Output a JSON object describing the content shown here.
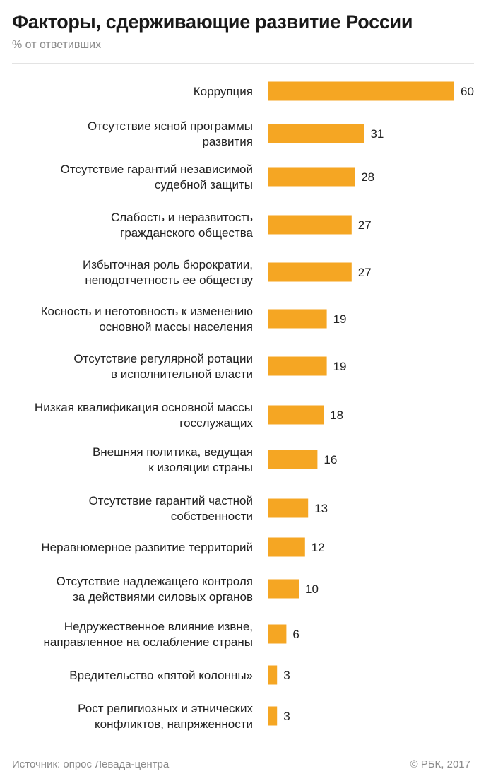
{
  "header": {
    "title": "Факторы, сдерживающие развитие России",
    "subtitle": "% от ответивших"
  },
  "footer": {
    "source": "Источник: опрос Левада-центра",
    "copyright": "© РБК, 2017"
  },
  "colors": {
    "bar": "#f5a623",
    "label": "#222222",
    "muted": "#8a8a8a"
  },
  "chart_data": {
    "type": "bar",
    "orientation": "horizontal",
    "categories": [
      [
        "Коррупция"
      ],
      [
        "Отсутствие ясной программы",
        "развития"
      ],
      [
        "Отсутствие гарантий независимой",
        "судебной защиты"
      ],
      [
        "Слабость и неразвитость",
        "гражданского общества"
      ],
      [
        "Избыточная роль бюрократии,",
        "неподотчетность ее обществу"
      ],
      [
        "Косность и неготовность к изменению",
        "основной массы населения"
      ],
      [
        "Отсутствие регулярной ротации",
        "в исполнительной власти"
      ],
      [
        "Низкая квалификация основной массы",
        "госслужащих"
      ],
      [
        "Внешняя политика, ведущая",
        "к изоляции страны"
      ],
      [
        "Отсутствие гарантий частной",
        "собственности"
      ],
      [
        "Неравномерное развитие территорий"
      ],
      [
        "Отсутствие надлежащего контроля",
        "за действиями силовых органов"
      ],
      [
        "Недружественное влияние извне,",
        "направленное на ослабление страны"
      ],
      [
        "Вредительство «пятой колонны»"
      ],
      [
        "Рост религиозных и этнических",
        "конфликтов, напряженности"
      ]
    ],
    "values": [
      60,
      31,
      28,
      27,
      27,
      19,
      19,
      18,
      16,
      13,
      12,
      10,
      6,
      3,
      3
    ],
    "xlim": [
      0,
      60
    ],
    "grid": false,
    "legend": "none"
  }
}
